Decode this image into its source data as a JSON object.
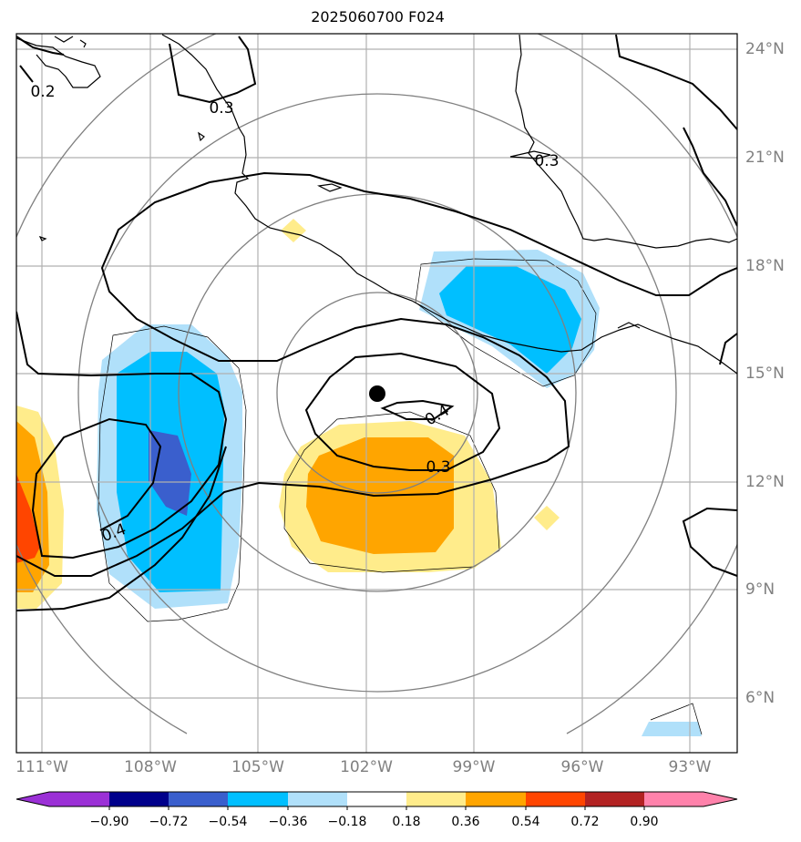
{
  "title": "2025060700 F024",
  "lon_labels": [
    "111°W",
    "108°W",
    "105°W",
    "102°W",
    "99°W",
    "96°W",
    "93°W"
  ],
  "lat_labels": [
    "24°N",
    "21°N",
    "18°N",
    "15°N",
    "12°N",
    "9°N",
    "6°N"
  ],
  "contour_labels": [
    "0.2",
    "0.3",
    "0.3",
    "0.4",
    "0.3",
    "0.4"
  ],
  "colorbar": {
    "ticks": [
      "−0.90",
      "−0.72",
      "−0.54",
      "−0.36",
      "−0.18",
      "0.18",
      "0.36",
      "0.54",
      "0.72",
      "0.90"
    ],
    "colors": [
      "#9b30d6",
      "#00008b",
      "#3a5fcd",
      "#00bfff",
      "#b0e0fa",
      "#ffffff",
      "#ffec8b",
      "#ffa500",
      "#ff4500",
      "#b22222",
      "#ff82ab"
    ]
  },
  "colors": {
    "grid": "#b0b0b0",
    "range_rings": "#808080",
    "coast": "#000000"
  },
  "storm_center": {
    "lon": "101.7°W",
    "lat": "14.5°N"
  }
}
